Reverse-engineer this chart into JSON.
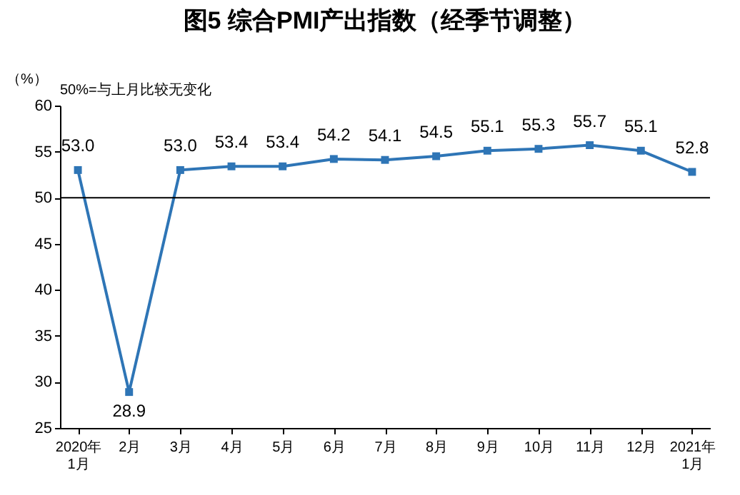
{
  "chart_data": {
    "type": "line",
    "title": "图5  综合PMI产出指数（经季节调整）",
    "ylabel": "（%）",
    "annotations": [
      "50%=与上月比较无变化"
    ],
    "categories": [
      "2020年\n1月",
      "2月",
      "3月",
      "4月",
      "5月",
      "6月",
      "7月",
      "8月",
      "9月",
      "10月",
      "11月",
      "12月",
      "2021年\n1月"
    ],
    "series": [
      {
        "color": "#2e75b6",
        "values": [
          53.0,
          28.9,
          53.0,
          53.4,
          53.4,
          54.2,
          54.1,
          54.5,
          55.1,
          55.3,
          55.7,
          55.1,
          52.8
        ],
        "value_labels": [
          "53.0",
          "28.9",
          "53.0",
          "53.4",
          "53.4",
          "54.2",
          "54.1",
          "54.5",
          "55.1",
          "55.3",
          "55.7",
          "55.1",
          "52.8"
        ]
      }
    ],
    "ylim": [
      25,
      60
    ],
    "yticks": [
      25,
      30,
      35,
      40,
      45,
      50,
      55,
      60
    ],
    "grid": false,
    "marker": "square",
    "line_style": "solid",
    "ref_lines": [
      {
        "axis": "y",
        "value": 50,
        "color": "#000000"
      }
    ]
  }
}
